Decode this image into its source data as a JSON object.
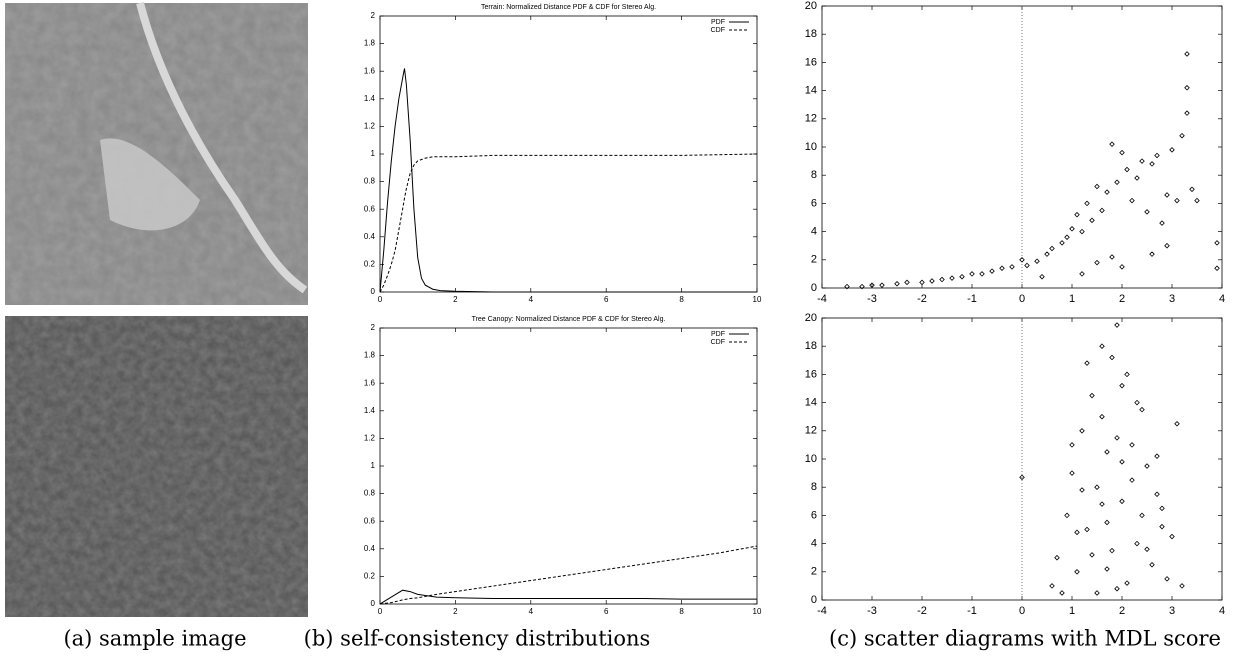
{
  "captions": [
    "(a) sample image",
    "(b) self-consistency distributions",
    "(c) scatter diagrams with MDL score"
  ],
  "chart_data": [
    {
      "type": "line",
      "title": "Terrain: Normalized Distance PDF & CDF for Stereo Alg.",
      "x": [
        0,
        0.1,
        0.2,
        0.3,
        0.4,
        0.5,
        0.6,
        0.65,
        0.7,
        0.8,
        0.9,
        1.0,
        1.1,
        1.2,
        1.4,
        1.6,
        2,
        3,
        4,
        6,
        8,
        10
      ],
      "series": [
        {
          "name": "PDF",
          "color": "#000000",
          "dash": "solid",
          "values": [
            0,
            0.3,
            0.65,
            0.95,
            1.2,
            1.4,
            1.55,
            1.62,
            1.5,
            1.1,
            0.6,
            0.25,
            0.1,
            0.05,
            0.02,
            0.01,
            0.005,
            0,
            0,
            0,
            0,
            0
          ]
        },
        {
          "name": "CDF",
          "color": "#000000",
          "dash": "dashed",
          "values": [
            0,
            0.05,
            0.12,
            0.2,
            0.3,
            0.45,
            0.6,
            0.68,
            0.75,
            0.86,
            0.92,
            0.95,
            0.96,
            0.97,
            0.98,
            0.98,
            0.98,
            0.99,
            0.99,
            0.99,
            0.99,
            1.0
          ]
        }
      ],
      "xlim": [
        0,
        10
      ],
      "ylim": [
        0,
        2
      ],
      "xticks": [
        0,
        2,
        4,
        6,
        8,
        10
      ],
      "yticks": [
        0,
        0.2,
        0.4,
        0.6,
        0.8,
        1,
        1.2,
        1.4,
        1.6,
        1.8,
        2
      ],
      "legend": "upper-right"
    },
    {
      "type": "line",
      "title": "Tree Canopy: Normalized Distance PDF & CDF for Stereo Alg.",
      "x": [
        0,
        0.3,
        0.6,
        0.8,
        1,
        1.5,
        2,
        3,
        4,
        5,
        6,
        7,
        8,
        9,
        10
      ],
      "series": [
        {
          "name": "PDF",
          "color": "#000000",
          "dash": "solid",
          "values": [
            0,
            0.05,
            0.1,
            0.09,
            0.07,
            0.05,
            0.045,
            0.04,
            0.04,
            0.04,
            0.04,
            0.04,
            0.035,
            0.035,
            0.035
          ]
        },
        {
          "name": "CDF",
          "color": "#000000",
          "dash": "dashed",
          "values": [
            0,
            0.01,
            0.03,
            0.04,
            0.045,
            0.07,
            0.09,
            0.13,
            0.17,
            0.21,
            0.25,
            0.29,
            0.33,
            0.37,
            0.42
          ]
        }
      ],
      "xlim": [
        0,
        10
      ],
      "ylim": [
        0,
        2
      ],
      "xticks": [
        0,
        2,
        4,
        6,
        8,
        10
      ],
      "yticks": [
        0,
        0.2,
        0.4,
        0.6,
        0.8,
        1,
        1.2,
        1.4,
        1.6,
        1.8,
        2
      ],
      "legend": "upper-right"
    },
    {
      "type": "scatter",
      "color": "#000000",
      "zero_line": true,
      "x": [
        -3.5,
        -3.2,
        -3,
        -2.8,
        -2.5,
        -2.3,
        -2,
        -1.8,
        -1.6,
        -1.4,
        -1.2,
        -1,
        -0.8,
        -0.6,
        -0.4,
        -0.2,
        0,
        0.1,
        0.3,
        0.5,
        0.6,
        0.8,
        0.9,
        1,
        1.1,
        1.2,
        1.3,
        1.4,
        1.5,
        1.6,
        1.7,
        1.8,
        1.9,
        2,
        2.1,
        2.2,
        2.3,
        2.4,
        2.5,
        2.6,
        2.7,
        2.8,
        2.9,
        3,
        3.1,
        3.2,
        3.3,
        3.3,
        3.3,
        3.4,
        3.5,
        3.9,
        3.9,
        1.8,
        2.0,
        1.5,
        1.2,
        2.6,
        2.9,
        0.4
      ],
      "y": [
        0.1,
        0.1,
        0.2,
        0.2,
        0.3,
        0.4,
        0.4,
        0.5,
        0.6,
        0.7,
        0.8,
        1.0,
        1.0,
        1.2,
        1.4,
        1.5,
        2.0,
        1.6,
        1.9,
        2.4,
        2.8,
        3.2,
        3.6,
        4.2,
        5.2,
        4.0,
        6.0,
        4.8,
        7.2,
        5.5,
        6.8,
        10.2,
        7.5,
        9.6,
        8.4,
        6.2,
        7.8,
        9.0,
        5.4,
        8.8,
        9.4,
        4.6,
        6.6,
        9.8,
        6.2,
        10.8,
        16.6,
        14.2,
        12.4,
        7.0,
        6.2,
        3.2,
        1.4,
        2.2,
        1.5,
        1.8,
        1.0,
        2.4,
        3.0,
        0.8
      ],
      "xlim": [
        -4,
        4
      ],
      "ylim": [
        0,
        20
      ],
      "xticks": [
        -4,
        -3,
        -2,
        -1,
        0,
        1,
        2,
        3,
        4
      ],
      "yticks": [
        0,
        2,
        4,
        6,
        8,
        10,
        12,
        14,
        16,
        18,
        20
      ]
    },
    {
      "type": "scatter",
      "color": "#000000",
      "zero_line": true,
      "x": [
        0,
        0.6,
        0.7,
        0.8,
        0.9,
        1.0,
        1.1,
        1.2,
        1.3,
        1.4,
        1.5,
        1.6,
        1.7,
        1.8,
        1.9,
        2.0,
        2.1,
        2.2,
        2.3,
        2.4,
        2.5,
        2.6,
        2.7,
        2.8,
        2.9,
        3.0,
        3.1,
        3.2,
        1.5,
        1.7,
        1.9,
        2.1,
        1.3,
        1.6,
        1.8,
        2.0,
        2.2,
        1.4,
        1.9,
        2.4,
        1.0,
        2.7,
        1.2,
        2.5,
        1.7,
        2.0,
        1.6,
        2.3,
        1.1,
        2.8
      ],
      "y": [
        8.7,
        1.0,
        3.0,
        0.5,
        6.0,
        9.0,
        2.0,
        12.0,
        5.0,
        14.5,
        8.0,
        18.0,
        10.5,
        3.5,
        19.5,
        7.0,
        16.0,
        11.0,
        4.0,
        13.5,
        9.5,
        2.5,
        7.5,
        6.5,
        1.5,
        4.5,
        12.5,
        1.0,
        0.5,
        5.5,
        11.5,
        1.2,
        16.8,
        13.0,
        17.2,
        15.2,
        8.5,
        3.2,
        0.8,
        6.0,
        11.0,
        10.2,
        7.8,
        3.6,
        2.2,
        9.8,
        6.8,
        14.0,
        4.8,
        5.2
      ],
      "xlim": [
        -4,
        4
      ],
      "ylim": [
        0,
        20
      ],
      "xticks": [
        -4,
        -3,
        -2,
        -1,
        0,
        1,
        2,
        3,
        4
      ],
      "yticks": [
        0,
        2,
        4,
        6,
        8,
        10,
        12,
        14,
        16,
        18,
        20
      ]
    }
  ]
}
